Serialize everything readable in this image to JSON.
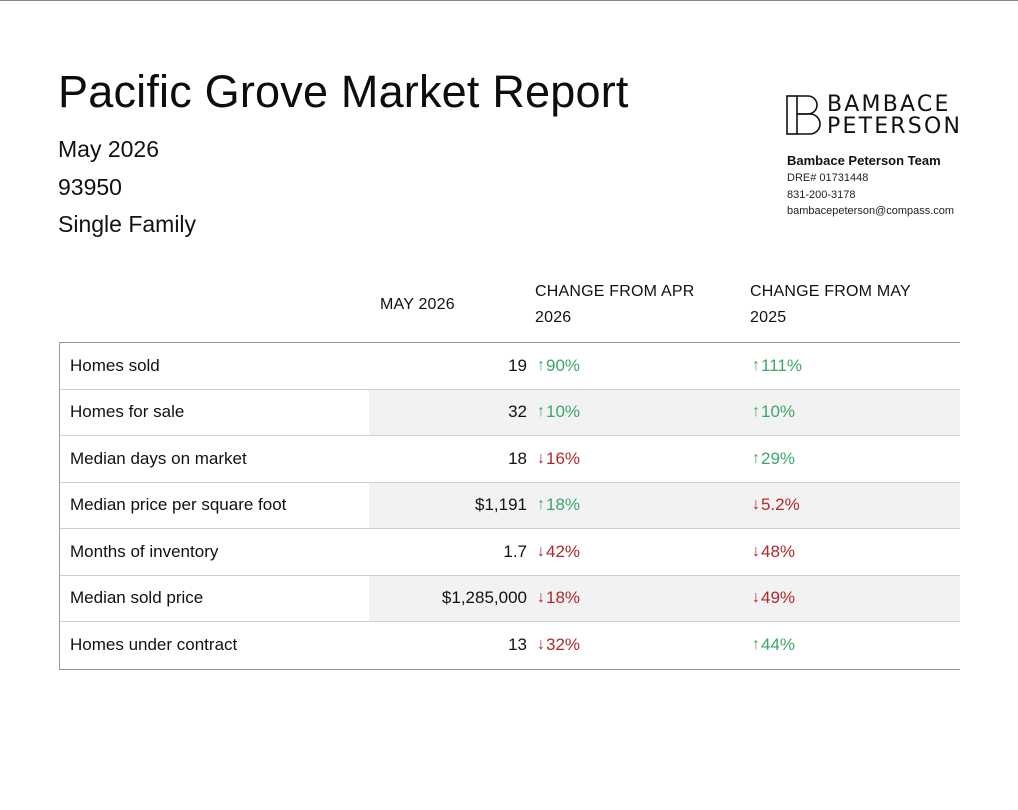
{
  "report": {
    "title": "Pacific Grove Market Report",
    "date": "May 2026",
    "zip": "93950",
    "property_type": "Single Family"
  },
  "brand": {
    "logo_line1": "BAMBACE",
    "logo_line2": "PETERSON",
    "team_name": "Bambace Peterson Team",
    "dre": "DRE# 01731448",
    "phone": "831-200-3178",
    "email": "bambacepeterson@compass.com"
  },
  "table": {
    "headers": {
      "current": "MAY 2026",
      "prev": "CHANGE FROM APR 2026",
      "year": "CHANGE FROM MAY 2025"
    },
    "rows": [
      {
        "label": "Homes sold",
        "value": "19",
        "prev": "90%",
        "prev_dir": "up",
        "year": "111%",
        "year_dir": "up"
      },
      {
        "label": "Homes for sale",
        "value": "32",
        "prev": "10%",
        "prev_dir": "up",
        "year": "10%",
        "year_dir": "up"
      },
      {
        "label": "Median days on market",
        "value": "18",
        "prev": "16%",
        "prev_dir": "down",
        "year": "29%",
        "year_dir": "up"
      },
      {
        "label": "Median price per square foot",
        "value": "$1,191",
        "prev": "18%",
        "prev_dir": "up",
        "year": "5.2%",
        "year_dir": "down"
      },
      {
        "label": "Months of inventory",
        "value": "1.7",
        "prev": "42%",
        "prev_dir": "down",
        "year": "48%",
        "year_dir": "down"
      },
      {
        "label": "Median sold price",
        "value": "$1,285,000",
        "prev": "18%",
        "prev_dir": "down",
        "year": "49%",
        "year_dir": "down"
      },
      {
        "label": "Homes under contract",
        "value": "13",
        "prev": "32%",
        "prev_dir": "down",
        "year": "44%",
        "year_dir": "up"
      }
    ]
  },
  "colors": {
    "up": "#3aa66a",
    "down": "#b0282b",
    "shade": "#f2f2f2"
  },
  "icons": {
    "up": "arrow-up-icon",
    "down": "arrow-down-icon"
  }
}
